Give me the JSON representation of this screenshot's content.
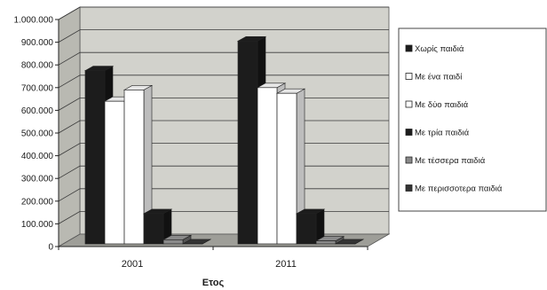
{
  "chart_data": {
    "type": "bar",
    "xlabel": "Ετος",
    "ylabel": "",
    "categories": [
      "2001",
      "2011"
    ],
    "ylim": [
      0,
      1000000
    ],
    "yticks": [
      "0",
      "100.000",
      "200.000",
      "300.000",
      "400.000",
      "500.000",
      "600.000",
      "700.000",
      "800.000",
      "900.000",
      "1.000.000"
    ],
    "grid": true,
    "legend_position": "right",
    "series": [
      {
        "name": "Χωρίς παιδιά",
        "values": [
          775000,
          905000
        ],
        "color": "#1c1c1c"
      },
      {
        "name": "Με ένα παιδί",
        "values": [
          640000,
          700000
        ],
        "color": "#ffffff"
      },
      {
        "name": "Με δύο παιδιά",
        "values": [
          690000,
          675000
        ],
        "color": "#ffffff"
      },
      {
        "name": "Με τρία παιδιά",
        "values": [
          145000,
          145000
        ],
        "color": "#1c1c1c"
      },
      {
        "name": "Με τέσσερα παιδιά",
        "values": [
          30000,
          25000
        ],
        "color": "#8a8a8a"
      },
      {
        "name": "Με περισσοτερα παιδιά",
        "values": [
          12000,
          12000
        ],
        "color": "#333333"
      }
    ]
  }
}
